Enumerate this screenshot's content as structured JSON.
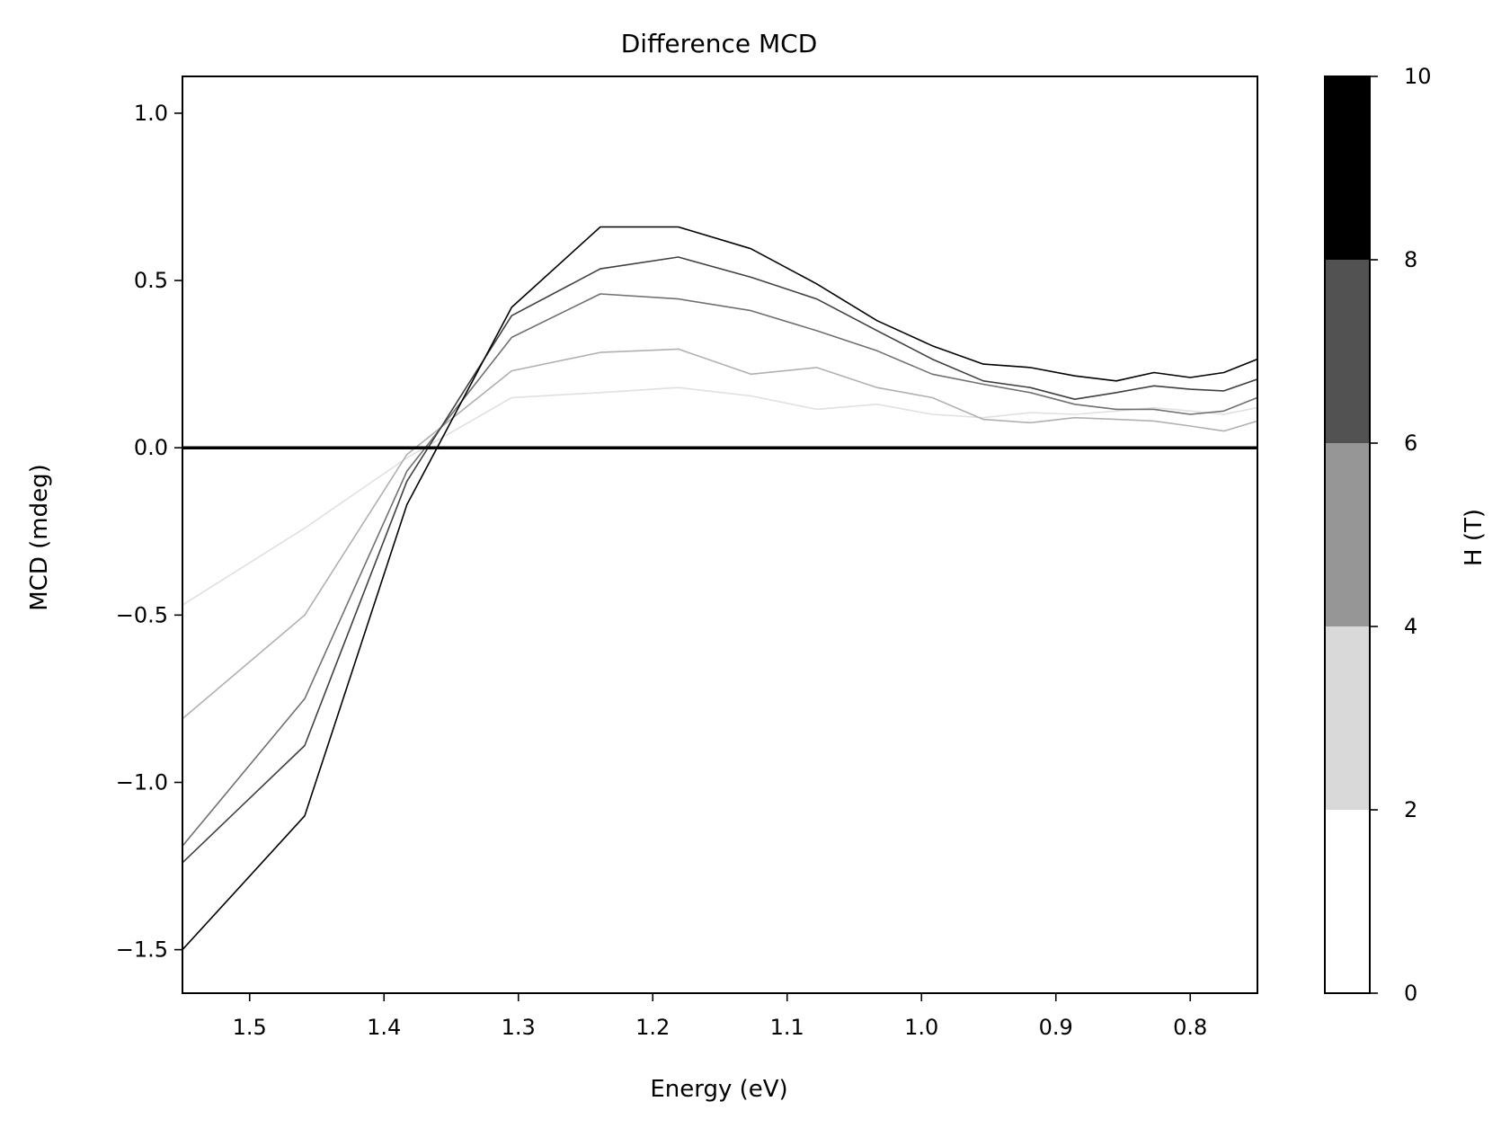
{
  "chart_data": {
    "type": "line",
    "title": "Difference MCD",
    "xlabel": "Energy (eV)",
    "ylabel": "MCD (mdeg)",
    "xlim": [
      1.55,
      0.75
    ],
    "ylim": [
      -1.63,
      1.11
    ],
    "x_reversed": true,
    "xticks": [
      1.5,
      1.4,
      1.3,
      1.2,
      1.1,
      1.0,
      0.9,
      0.8
    ],
    "xtick_labels": [
      "1.5",
      "1.4",
      "1.3",
      "1.2",
      "1.1",
      "1.0",
      "0.9",
      "0.8"
    ],
    "yticks": [
      1.0,
      0.5,
      0.0,
      -0.5,
      -1.0,
      -1.5
    ],
    "ytick_labels": [
      "1.0",
      "0.5",
      "0.0",
      "−0.5",
      "−1.0",
      "−1.5"
    ],
    "grid": false,
    "zero_line": true,
    "x": [
      1.55,
      1.459,
      1.383,
      1.305,
      1.239,
      1.181,
      1.127,
      1.078,
      1.033,
      0.992,
      0.954,
      0.919,
      0.886,
      0.855,
      0.827,
      0.8,
      0.775,
      0.75
    ],
    "series": [
      {
        "color": "#e0e0e0",
        "values": [
          -0.47,
          -0.24,
          -0.03,
          0.15,
          0.165,
          0.18,
          0.155,
          0.115,
          0.13,
          0.1,
          0.09,
          0.105,
          0.1,
          0.11,
          0.12,
          0.11,
          0.1,
          0.12
        ]
      },
      {
        "color": "#b0b0b0",
        "values": [
          -0.81,
          -0.5,
          -0.02,
          0.23,
          0.285,
          0.295,
          0.22,
          0.24,
          0.18,
          0.15,
          0.085,
          0.075,
          0.09,
          0.085,
          0.08,
          0.065,
          0.05,
          0.08
        ]
      },
      {
        "color": "#707070",
        "values": [
          -1.19,
          -0.75,
          -0.07,
          0.33,
          0.46,
          0.445,
          0.41,
          0.35,
          0.29,
          0.22,
          0.19,
          0.165,
          0.13,
          0.115,
          0.115,
          0.1,
          0.11,
          0.15
        ]
      },
      {
        "color": "#404040",
        "values": [
          -1.24,
          -0.89,
          -0.1,
          0.395,
          0.535,
          0.57,
          0.51,
          0.445,
          0.35,
          0.265,
          0.2,
          0.18,
          0.145,
          0.165,
          0.185,
          0.175,
          0.17,
          0.205
        ]
      },
      {
        "color": "#000000",
        "values": [
          -1.5,
          -1.1,
          -0.17,
          0.42,
          0.66,
          0.66,
          0.595,
          0.49,
          0.38,
          0.305,
          0.25,
          0.24,
          0.215,
          0.2,
          0.225,
          0.21,
          0.225,
          0.265
        ]
      }
    ],
    "colorbar": {
      "label": "H (T)",
      "range": [
        0,
        10
      ],
      "ticks": [
        0,
        2,
        4,
        6,
        8,
        10
      ],
      "tick_labels": [
        "0",
        "2",
        "4",
        "6",
        "8",
        "10"
      ],
      "bands": [
        {
          "from": 0,
          "to": 2,
          "color": "#ffffff"
        },
        {
          "from": 2,
          "to": 4,
          "color": "#d9d9d9"
        },
        {
          "from": 4,
          "to": 6,
          "color": "#969696"
        },
        {
          "from": 6,
          "to": 8,
          "color": "#525252"
        },
        {
          "from": 8,
          "to": 10,
          "color": "#000000"
        }
      ]
    }
  }
}
